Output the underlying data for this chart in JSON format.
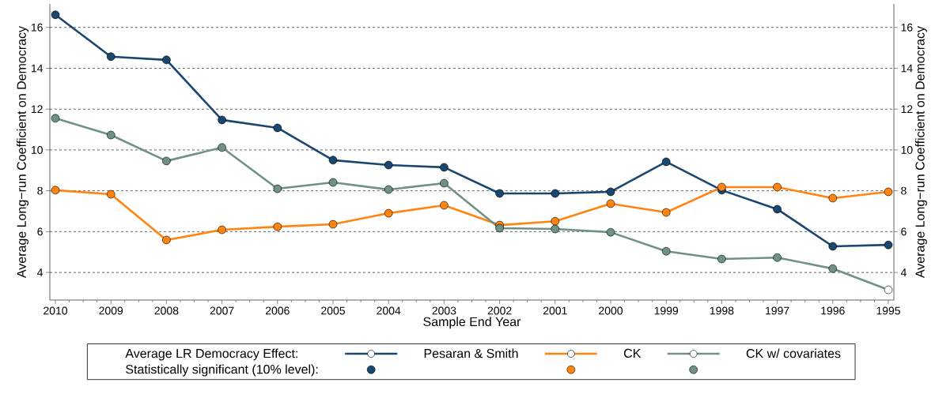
{
  "chart_data": {
    "type": "line",
    "xlabel": "Sample End Year",
    "ylabel": "Average Long−run Coefficient on Democracy",
    "y2label": "Average Long−run Coefficient on Democracy",
    "legend_title": "Average LR Democracy Effect:",
    "annotations": [
      "Statistically significant (10% level):"
    ],
    "categories": [
      "2010",
      "2009",
      "2008",
      "2007",
      "2006",
      "2005",
      "2004",
      "2003",
      "2002",
      "2001",
      "2000",
      "1999",
      "1998",
      "1997",
      "1996",
      "1995"
    ],
    "series": [
      {
        "name": "Pesaran & Smith",
        "color": "#1a476f",
        "values": [
          16.62,
          14.57,
          14.41,
          11.47,
          11.08,
          9.5,
          9.26,
          9.15,
          7.87,
          7.87,
          7.95,
          9.42,
          8.03,
          7.1,
          5.28,
          5.35
        ],
        "colors": [
          "#1a476f",
          "#1a476f",
          "#1a476f",
          "#1a476f",
          "#1a476f",
          "#1a476f",
          "#1a476f",
          "#1a476f",
          "#1a476f",
          "#1a476f",
          "#1a476f",
          "#1a476f",
          "#1a476f",
          "#1a476f",
          "#1a476f",
          "#1a476f"
        ]
      },
      {
        "name": "CK",
        "color": "#ff8410",
        "values": [
          8.03,
          7.83,
          5.59,
          6.09,
          6.24,
          6.36,
          6.9,
          7.29,
          6.32,
          6.51,
          7.37,
          6.94,
          8.18,
          8.18,
          7.64,
          7.95
        ],
        "colors": [
          "#ff8410",
          "#ff8410",
          "#ff8410",
          "#ff8410",
          "#ff8410",
          "#ff8410",
          "#ff8410",
          "#ff8410",
          "#ff8410",
          "#ff8410",
          "#ff8410",
          "#ff8410",
          "#ff8410",
          "#ff8410",
          "#ff8410",
          "#ff8410"
        ]
      },
      {
        "name": "CK w/ covariates",
        "color": "#6f9285",
        "values": [
          11.55,
          10.73,
          9.46,
          10.12,
          8.1,
          8.41,
          8.06,
          8.37,
          6.17,
          6.13,
          5.97,
          5.04,
          4.66,
          4.73,
          4.19,
          3.15
        ],
        "colors": [
          "#6f9285",
          "#6f9285",
          "#6f9285",
          "#6f9285",
          "#6f9285",
          "#6f9285",
          "#6f9285",
          "#6f9285",
          "#6f9285",
          "#6f9285",
          "#6f9285",
          "#6f9285",
          "#6f9285",
          "#6f9285",
          "#6f9285",
          "#ffffff"
        ]
      }
    ],
    "ylim": [
      2.65,
      17.15
    ],
    "yticks": [
      4,
      6,
      8,
      10,
      12,
      14,
      16
    ],
    "y2lim": [
      2.65,
      17.15
    ],
    "y2ticks": [
      4,
      6,
      8,
      10,
      12,
      14,
      16
    ],
    "grid": "y",
    "legend": "bottom",
    "marker": "circle",
    "line_style": "solid"
  }
}
